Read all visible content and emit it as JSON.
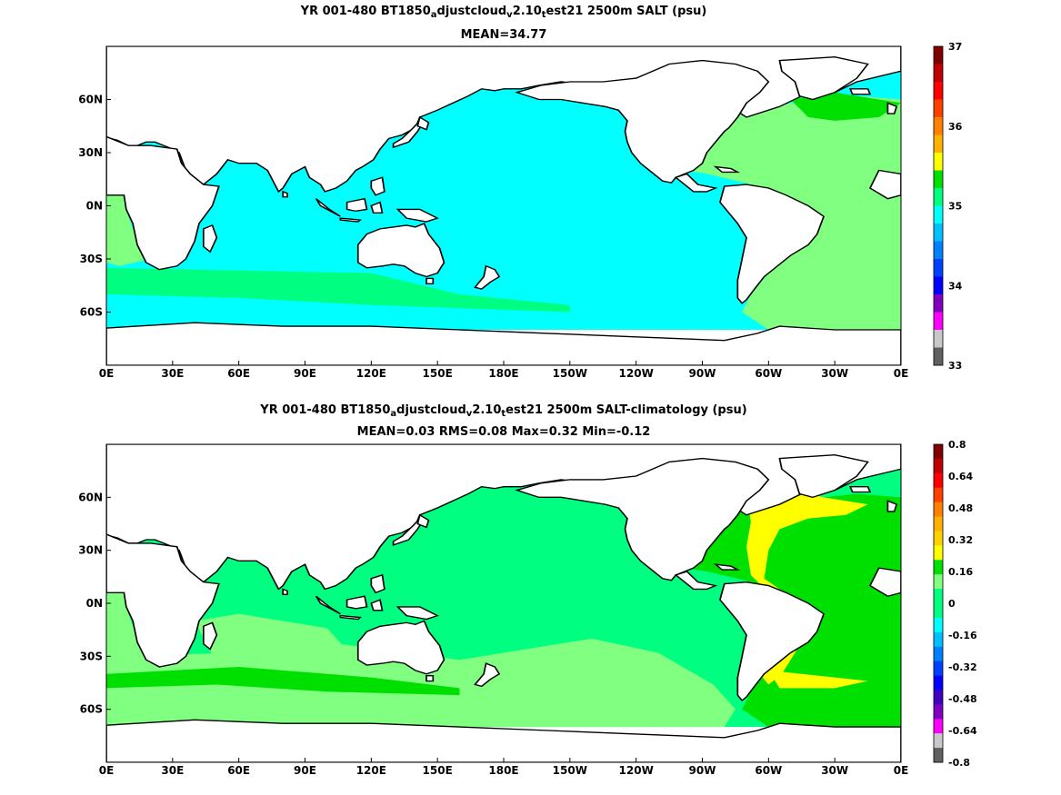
{
  "panels": [
    {
      "id": "top",
      "title_parts": [
        "YR 001-480 BT1850",
        "a",
        "djustcloud",
        "v",
        "2.10",
        "t",
        "est21 2500m SALT (psu)"
      ],
      "subtitle": "MEAN=34.77",
      "colorbar": {
        "labels": [
          "37",
          "36",
          "35",
          "34",
          "33"
        ],
        "colors": [
          "#7f0000",
          "#bf0000",
          "#ff0000",
          "#ff4000",
          "#ff8000",
          "#ffb000",
          "#ffff00",
          "#00e000",
          "#00ff80",
          "#00ffff",
          "#00c0ff",
          "#0080ff",
          "#0040ff",
          "#0000ff",
          "#8000c0",
          "#ff00ff",
          "#c8c8c8",
          "#606060"
        ]
      }
    },
    {
      "id": "bottom",
      "title_parts": [
        "YR 001-480 BT1850",
        "a",
        "djustcloud",
        "v",
        "2.10",
        "t",
        "est21 2500m SALT-climatology (psu)"
      ],
      "subtitle": "MEAN=0.03   RMS=0.08   Max=0.32   Min=-0.12",
      "colorbar": {
        "labels": [
          "0.8",
          "0.64",
          "0.48",
          "0.32",
          "0.16",
          "0",
          "-0.16",
          "-0.32",
          "-0.48",
          "-0.64",
          "-0.8"
        ],
        "colors": [
          "#7f0000",
          "#bf0000",
          "#ff0000",
          "#ff4000",
          "#ff8000",
          "#ffb000",
          "#ffd000",
          "#ffff00",
          "#00e000",
          "#80ff80",
          "#00ff80",
          "#00ff80",
          "#00ffff",
          "#00c0ff",
          "#0080ff",
          "#0040ff",
          "#0000ff",
          "#4000c0",
          "#8000c0",
          "#ff00ff",
          "#c8c8c8",
          "#606060"
        ]
      }
    }
  ],
  "axes": {
    "x_ticks": [
      "0E",
      "30E",
      "60E",
      "90E",
      "120E",
      "150E",
      "180E",
      "150W",
      "120W",
      "90W",
      "60W",
      "30W",
      "0E"
    ],
    "y_ticks": [
      "60N",
      "30N",
      "0N",
      "30S",
      "60S"
    ]
  },
  "colors": {
    "pacific_top": "#00ffff",
    "southern_band_top": "#00ff80",
    "atlantic_top": "#80ff80",
    "north_atlantic_top": "#00e000",
    "pacific_bottom": "#00ff80",
    "southern_bottom": "#80ff80",
    "atlantic_bottom": "#00e000",
    "north_atlantic_bottom": "#ffff00",
    "land": "#ffffff",
    "coast": "#000000"
  }
}
